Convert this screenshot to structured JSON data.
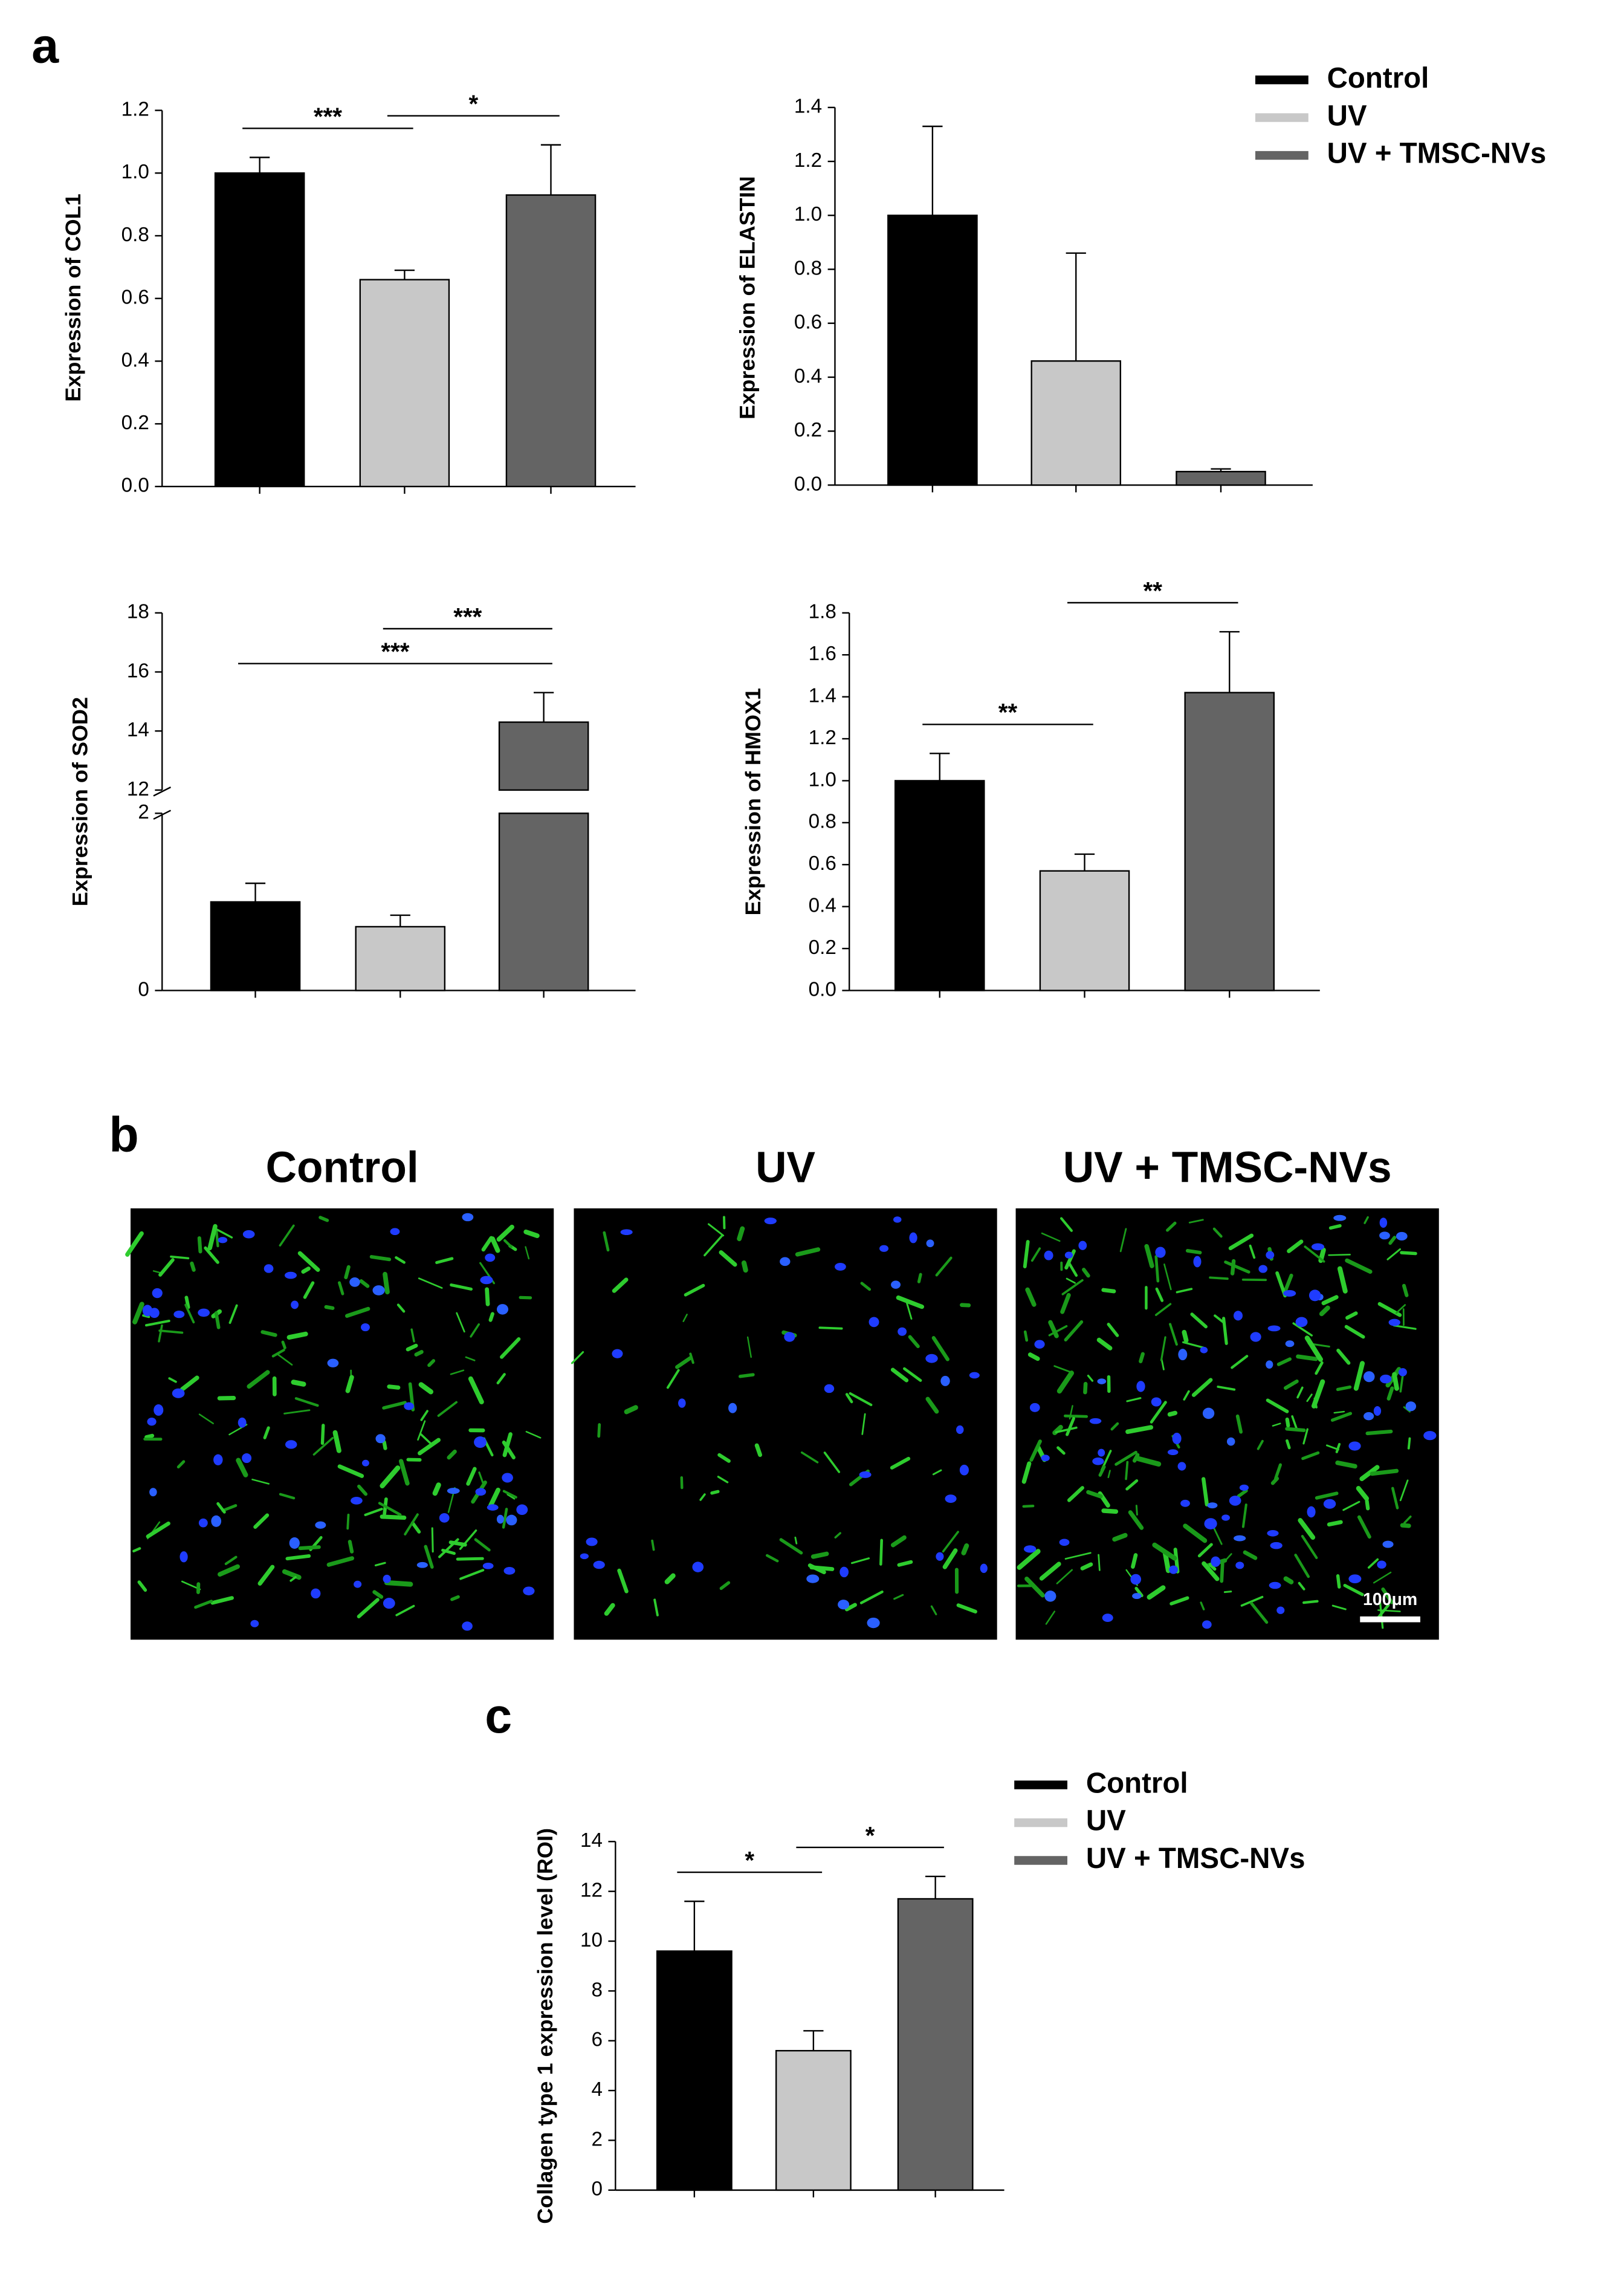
{
  "panel_labels": [
    "a",
    "b",
    "c"
  ],
  "chart_data": [
    {
      "type": "bar",
      "ylabel": "Expression of COL1",
      "categories": [
        null,
        null,
        null
      ],
      "values": [
        1.0,
        0.66,
        0.93
      ],
      "errors": [
        0.05,
        0.03,
        0.16
      ],
      "colors": [
        "#000000",
        "#c8c8c8",
        "#646464"
      ],
      "ylim": [
        0,
        1.2
      ],
      "yticks": [
        {
          "value": 0,
          "label": "0.0"
        },
        0.2,
        0.4,
        0.6,
        0.8,
        {
          "value": 1,
          "label": "1.0"
        },
        1.2
      ],
      "significance": [
        {
          "label": "***",
          "between": [
            0,
            1
          ]
        },
        {
          "label": "*",
          "between": [
            1,
            2
          ]
        }
      ],
      "legend": [
        {
          "name": "Control",
          "color": "#000000"
        },
        {
          "name": "UV",
          "color": "#c8c8c8"
        },
        {
          "name": "UV + TMSC-NVs",
          "color": "#646464"
        }
      ]
    },
    {
      "type": "bar",
      "ylabel": "Expression of ELASTIN",
      "categories": [
        null,
        null,
        null
      ],
      "values": [
        1.0,
        0.46,
        0.05
      ],
      "errors": [
        0.33,
        0.4,
        0.01
      ],
      "colors": [
        "#000000",
        "#c8c8c8",
        "#646464"
      ],
      "ylim": [
        0,
        1.4
      ],
      "yticks": [
        {
          "value": 0,
          "label": "0.0"
        },
        0.2,
        0.4,
        0.6,
        0.8,
        {
          "value": 1,
          "label": "1.0"
        },
        1.2,
        1.4
      ]
    },
    {
      "type": "bar",
      "ylabel": "Expression of SOD2",
      "categories": [
        null,
        null,
        null
      ],
      "values": [
        1.0,
        0.72,
        14.3
      ],
      "errors": [
        0.21,
        0.13,
        1.0
      ],
      "colors": [
        "#000000",
        "#c8c8c8",
        "#646464"
      ],
      "ylim": [
        0,
        18
      ],
      "axis_break": [
        2,
        12
      ],
      "yticks": [
        0,
        2,
        12,
        14,
        16,
        18
      ],
      "significance": [
        {
          "label": "***",
          "between": [
            0,
            2
          ]
        },
        {
          "label": "***",
          "between": [
            1,
            2
          ]
        }
      ]
    },
    {
      "type": "bar",
      "ylabel": "Expression of HMOX1",
      "categories": [
        null,
        null,
        null
      ],
      "values": [
        1.0,
        0.57,
        1.42
      ],
      "errors": [
        0.13,
        0.08,
        0.29
      ],
      "colors": [
        "#000000",
        "#c8c8c8",
        "#646464"
      ],
      "ylim": [
        0,
        1.8
      ],
      "yticks": [
        {
          "value": 0,
          "label": "0.0"
        },
        0.2,
        0.4,
        0.6,
        0.8,
        {
          "value": 1,
          "label": "1.0"
        },
        1.2,
        1.4,
        1.6,
        1.8
      ],
      "significance": [
        {
          "label": "**",
          "between": [
            0,
            1
          ]
        },
        {
          "label": "**",
          "between": [
            1,
            2
          ]
        }
      ]
    },
    {
      "type": "bar",
      "ylabel": "Collagen type 1 expression level (ROI)",
      "categories": [
        null,
        null,
        null
      ],
      "values": [
        9.6,
        5.6,
        11.7
      ],
      "errors": [
        2.0,
        0.8,
        0.9
      ],
      "colors": [
        "#000000",
        "#c8c8c8",
        "#646464"
      ],
      "ylim": [
        0,
        14
      ],
      "yticks": [
        0,
        2,
        4,
        6,
        8,
        10,
        12,
        14
      ],
      "significance": [
        {
          "label": "*",
          "between": [
            0,
            1
          ]
        },
        {
          "label": "*",
          "between": [
            1,
            2
          ]
        }
      ],
      "legend": [
        {
          "name": "Control",
          "color": "#000000"
        },
        {
          "name": "UV",
          "color": "#c8c8c8"
        },
        {
          "name": "UV + TMSC-NVs",
          "color": "#646464"
        }
      ]
    }
  ],
  "micrographs": {
    "titles": [
      "Control",
      "UV",
      "UV + TMSC-NVs"
    ],
    "scale_bar": "100μm"
  }
}
